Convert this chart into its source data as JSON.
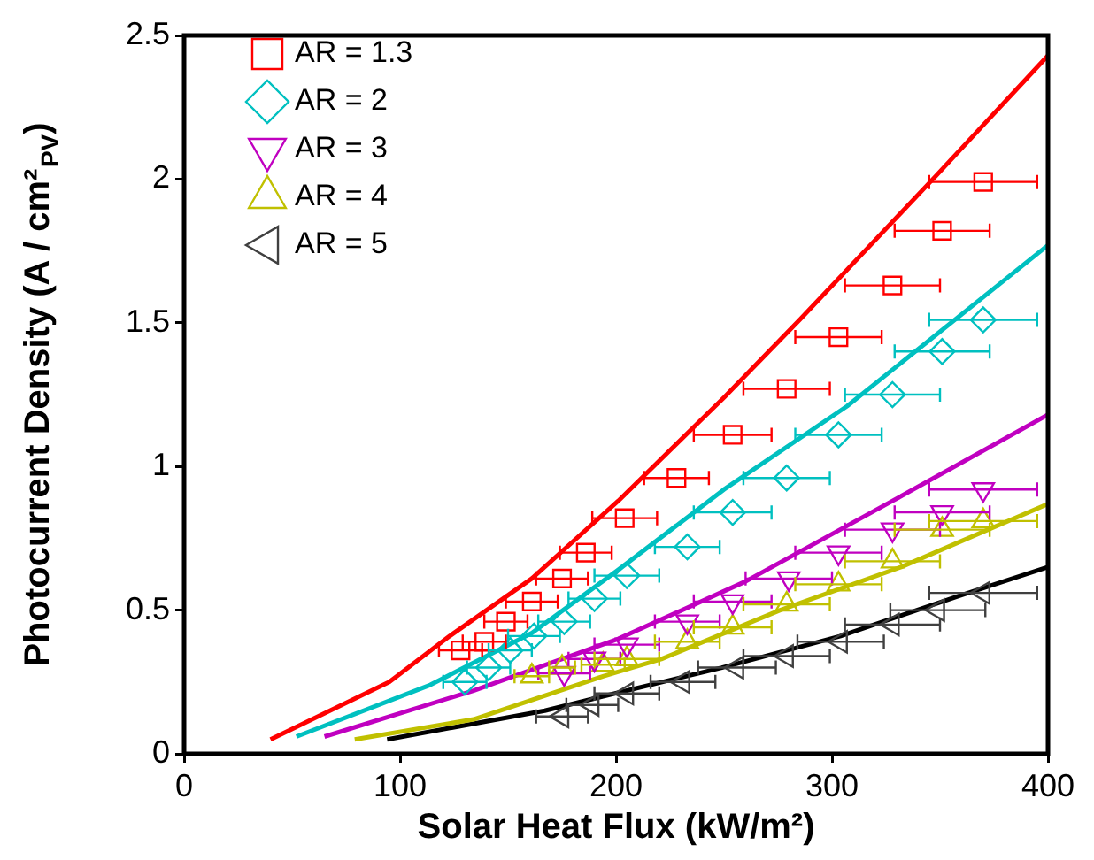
{
  "chart_data": {
    "type": "scatter",
    "xlabel": "Solar Heat Flux (kW/m²)",
    "ylabel": "Photocurrent Density (A / cm²$_{PV}$)",
    "xlim": [
      0,
      400
    ],
    "xticks": [
      0,
      100,
      200,
      300,
      400
    ],
    "ylim": [
      0,
      2.5
    ],
    "yticks": [
      0,
      0.5,
      1,
      1.5,
      2,
      2.5
    ],
    "grid": false,
    "legend": "top left",
    "series": [
      {
        "name": "AR = 1.3",
        "color": "#ff0000",
        "marker": "square",
        "x": [
          128,
          139,
          149,
          161,
          175,
          186,
          204,
          228,
          254,
          279,
          303,
          328,
          351,
          370
        ],
        "values": [
          0.36,
          0.39,
          0.46,
          0.53,
          0.61,
          0.7,
          0.82,
          0.96,
          1.11,
          1.27,
          1.45,
          1.63,
          1.82,
          1.99
        ],
        "xerrors": [
          10,
          10,
          10,
          12,
          12,
          12,
          15,
          15,
          18,
          20,
          20,
          22,
          22,
          25
        ]
      },
      {
        "name": "AR = 2",
        "color": "#00c0c0",
        "marker": "diamond",
        "x": [
          130,
          141,
          151,
          162,
          176,
          190,
          205,
          233,
          254,
          279,
          303,
          328,
          351,
          370
        ],
        "values": [
          0.25,
          0.3,
          0.36,
          0.41,
          0.46,
          0.54,
          0.62,
          0.72,
          0.84,
          0.96,
          1.11,
          1.25,
          1.4,
          1.51
        ],
        "xerrors": [
          10,
          10,
          10,
          12,
          12,
          12,
          15,
          15,
          18,
          20,
          20,
          22,
          22,
          25
        ]
      },
      {
        "name": "AR = 3",
        "color": "#c000c0",
        "marker": "triangle-down",
        "x": [
          176,
          190,
          205,
          233,
          254,
          280,
          303,
          328,
          351,
          370
        ],
        "values": [
          0.28,
          0.33,
          0.38,
          0.46,
          0.53,
          0.61,
          0.7,
          0.78,
          0.84,
          0.92
        ],
        "xerrors": [
          12,
          12,
          15,
          15,
          18,
          20,
          20,
          22,
          22,
          25
        ]
      },
      {
        "name": "AR = 4",
        "color": "#c0c000",
        "marker": "triangle",
        "x": [
          161,
          175,
          194,
          205,
          233,
          254,
          279,
          303,
          328,
          351,
          370
        ],
        "values": [
          0.27,
          0.3,
          0.31,
          0.33,
          0.39,
          0.44,
          0.52,
          0.59,
          0.67,
          0.78,
          0.81
        ],
        "xerrors": [
          8,
          6,
          10,
          15,
          15,
          18,
          20,
          20,
          22,
          22,
          25
        ]
      },
      {
        "name": "AR = 5",
        "color": "#404040",
        "marker": "triangle-left",
        "x": [
          175,
          189,
          205,
          231,
          256,
          279,
          304,
          328,
          349,
          370
        ],
        "values": [
          0.13,
          0.17,
          0.21,
          0.25,
          0.3,
          0.34,
          0.39,
          0.45,
          0.5,
          0.56
        ],
        "xerrors": [
          12,
          12,
          15,
          15,
          18,
          20,
          20,
          22,
          22,
          25
        ]
      },
      {
        "type": "line",
        "color": "#ff0000",
        "marker": "none",
        "x": [
          40,
          95,
          123,
          161,
          201,
          250,
          285,
          348,
          400
        ],
        "values": [
          0.05,
          0.25,
          0.41,
          0.61,
          0.88,
          1.24,
          1.51,
          2.01,
          2.43
        ]
      },
      {
        "type": "line",
        "color": "#00c0c0",
        "marker": "none",
        "x": [
          52,
          114,
          161,
          201,
          250,
          307,
          400
        ],
        "values": [
          0.06,
          0.24,
          0.42,
          0.64,
          0.92,
          1.21,
          1.77
        ]
      },
      {
        "type": "line",
        "color": "#c000c0",
        "marker": "none",
        "x": [
          65,
          134,
          201,
          260,
          328,
          400
        ],
        "values": [
          0.06,
          0.22,
          0.4,
          0.6,
          0.88,
          1.18
        ]
      },
      {
        "type": "line",
        "color": "#c0c000",
        "marker": "none",
        "x": [
          79,
          134,
          194,
          221,
          276,
          332,
          400
        ],
        "values": [
          0.05,
          0.12,
          0.27,
          0.33,
          0.5,
          0.65,
          0.87
        ]
      },
      {
        "type": "line",
        "color": "#000000",
        "marker": "none",
        "x": [
          94,
          167,
          194,
          249,
          304,
          359,
          400
        ],
        "values": [
          0.05,
          0.15,
          0.2,
          0.3,
          0.41,
          0.55,
          0.65
        ]
      }
    ]
  }
}
